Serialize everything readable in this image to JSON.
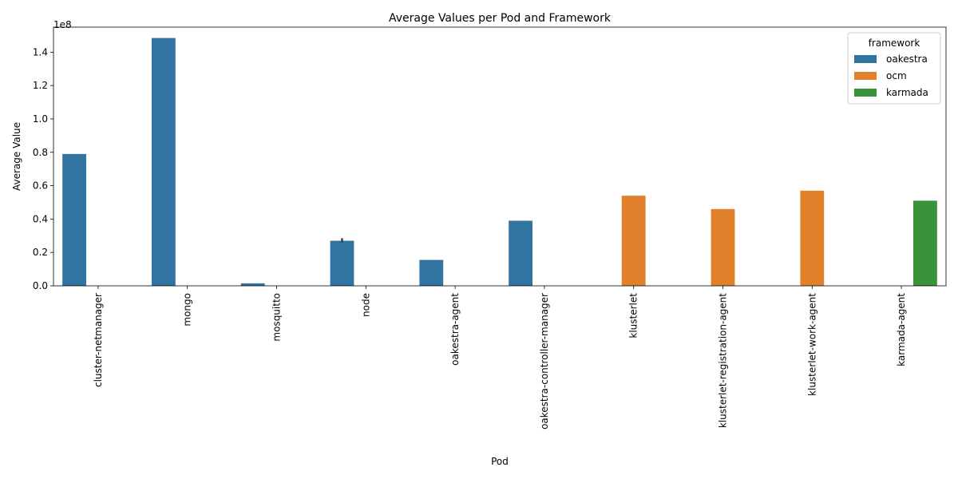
{
  "chart_data": {
    "type": "bar",
    "title": "Average Values per Pod and Framework",
    "xlabel": "Pod",
    "ylabel": "Average Value",
    "y_offset_label": "1e8",
    "ylim": [
      0,
      1.55
    ],
    "y_ticks": [
      0.0,
      0.2,
      0.4,
      0.6,
      0.8,
      1.0,
      1.2,
      1.4
    ],
    "y_tick_labels": [
      "0.0",
      "0.2",
      "0.4",
      "0.6",
      "0.8",
      "1.0",
      "1.2",
      "1.4"
    ],
    "grid": false,
    "categories": [
      "cluster-netmanager",
      "mongo",
      "mosquitto",
      "node",
      "oakestra-agent",
      "oakestra-controller-manager",
      "klusterlet",
      "klusterlet-registration-agent",
      "klusterlet-work-agent",
      "karmada-agent"
    ],
    "series": [
      {
        "name": "oakestra",
        "color": "#3274a1",
        "values": [
          0.79,
          1.485,
          0.015,
          0.27,
          0.155,
          0.39,
          null,
          null,
          null,
          null
        ],
        "error": [
          null,
          null,
          null,
          [
            0.26,
            0.285
          ],
          null,
          null,
          null,
          null,
          null,
          null
        ]
      },
      {
        "name": "ocm",
        "color": "#e1812c",
        "values": [
          null,
          null,
          null,
          null,
          null,
          null,
          0.54,
          0.46,
          0.57,
          null
        ]
      },
      {
        "name": "karmada",
        "color": "#3a923a",
        "values": [
          null,
          null,
          null,
          null,
          null,
          null,
          null,
          null,
          null,
          0.51
        ]
      }
    ],
    "legend": {
      "title": "framework",
      "placement": "top-right"
    }
  }
}
